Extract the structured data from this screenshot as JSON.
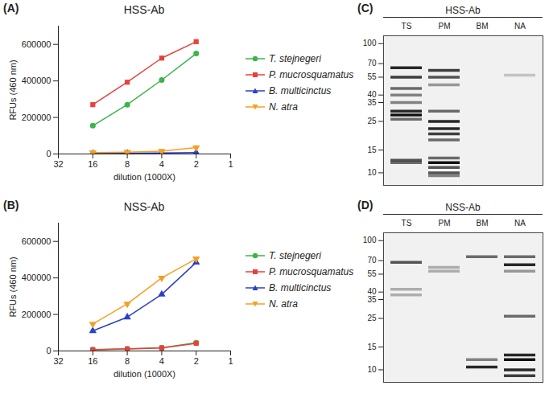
{
  "chart_data": [
    {
      "type": "line",
      "label": "(A)",
      "title": "HSS-Ab",
      "x_label": "dilution (1000X)",
      "y_label": "RFUs (460 nm)",
      "log": "x",
      "grid": false,
      "legend": "right",
      "x": [
        16,
        8,
        4,
        2
      ],
      "xlim": [
        32,
        1
      ],
      "xticks": [
        32,
        16,
        8,
        4,
        2,
        1
      ],
      "ylim": [
        0,
        700000
      ],
      "yticks": [
        0,
        200000,
        400000,
        600000
      ],
      "series": [
        {
          "name": "T. stejnegeri",
          "color": "#3cb44b",
          "marker": "circle",
          "values": [
            155000,
            270000,
            405000,
            550000
          ]
        },
        {
          "name": "P. mucrosquamatus",
          "color": "#e8413c",
          "marker": "square",
          "values": [
            270000,
            393000,
            525000,
            615000
          ]
        },
        {
          "name": "B. multicinctus",
          "color": "#2b3fc9",
          "marker": "triangle",
          "values": [
            3000,
            4000,
            5000,
            8000
          ]
        },
        {
          "name": "N. atra",
          "color": "#f5a020",
          "marker": "triangle-down",
          "values": [
            8000,
            10000,
            15000,
            35000
          ]
        }
      ]
    },
    {
      "type": "line",
      "label": "(B)",
      "title": "NSS-Ab",
      "x_label": "dilution (1000X)",
      "y_label": "RFUs (460 nm)",
      "log": "x",
      "grid": false,
      "legend": "right",
      "x": [
        16,
        8,
        4,
        2
      ],
      "xlim": [
        32,
        1
      ],
      "xticks": [
        32,
        16,
        8,
        4,
        2,
        1
      ],
      "ylim": [
        0,
        700000
      ],
      "yticks": [
        0,
        200000,
        400000,
        600000
      ],
      "series": [
        {
          "name": "T. stejnegeri",
          "color": "#3cb44b",
          "marker": "circle",
          "values": [
            8000,
            12000,
            18000,
            45000
          ]
        },
        {
          "name": "P. mucrosquamatus",
          "color": "#e8413c",
          "marker": "square",
          "values": [
            7000,
            11000,
            17000,
            42000
          ]
        },
        {
          "name": "B. multicinctus",
          "color": "#2b3fc9",
          "marker": "triangle",
          "values": [
            110000,
            185000,
            310000,
            485000
          ]
        },
        {
          "name": "N. atra",
          "color": "#f5a020",
          "marker": "triangle-down",
          "values": [
            148000,
            258000,
            400000,
            505000
          ]
        }
      ]
    },
    {
      "type": "blot",
      "label": "(C)",
      "title": "HSS-Ab",
      "log": "y",
      "categories": [
        "TS",
        "PM",
        "BM",
        "NA"
      ],
      "ylim": [
        8,
        115
      ],
      "yticks": [
        100,
        70,
        55,
        40,
        35,
        25,
        15,
        10
      ],
      "bands": [
        [
          {
            "kda": 65,
            "intensity": 0.9
          },
          {
            "kda": 55,
            "intensity": 0.8
          },
          {
            "kda": 45,
            "intensity": 0.6
          },
          {
            "kda": 40,
            "intensity": 0.5
          },
          {
            "kda": 35,
            "intensity": 0.5
          },
          {
            "kda": 30,
            "intensity": 0.9
          },
          {
            "kda": 28,
            "intensity": 1
          },
          {
            "kda": 26,
            "intensity": 0.6
          },
          {
            "kda": 12.5,
            "intensity": 0.7
          },
          {
            "kda": 12,
            "intensity": 0.6
          }
        ],
        [
          {
            "kda": 62,
            "intensity": 0.8
          },
          {
            "kda": 55,
            "intensity": 0.7
          },
          {
            "kda": 48,
            "intensity": 0.4
          },
          {
            "kda": 30,
            "intensity": 0.6
          },
          {
            "kda": 25,
            "intensity": 0.9
          },
          {
            "kda": 22,
            "intensity": 0.9
          },
          {
            "kda": 20,
            "intensity": 0.8
          },
          {
            "kda": 18,
            "intensity": 0.6
          },
          {
            "kda": 13,
            "intensity": 0.6
          },
          {
            "kda": 12,
            "intensity": 1
          },
          {
            "kda": 11,
            "intensity": 0.7
          },
          {
            "kda": 10,
            "intensity": 0.7
          },
          {
            "kda": 9.5,
            "intensity": 0.5
          }
        ],
        [],
        [
          {
            "kda": 57,
            "intensity": 0.2
          }
        ]
      ]
    },
    {
      "type": "blot",
      "label": "(D)",
      "title": "NSS-Ab",
      "log": "y",
      "categories": [
        "TS",
        "PM",
        "BM",
        "NA"
      ],
      "ylim": [
        8,
        115
      ],
      "yticks": [
        100,
        70,
        55,
        40,
        35,
        25,
        15,
        10
      ],
      "bands": [
        [
          {
            "kda": 68,
            "intensity": 0.7
          },
          {
            "kda": 42,
            "intensity": 0.3
          },
          {
            "kda": 38,
            "intensity": 0.3
          }
        ],
        [
          {
            "kda": 62,
            "intensity": 0.3
          },
          {
            "kda": 58,
            "intensity": 0.3
          }
        ],
        [
          {
            "kda": 75,
            "intensity": 0.6
          },
          {
            "kda": 12,
            "intensity": 0.5
          },
          {
            "kda": 10.5,
            "intensity": 0.9
          }
        ],
        [
          {
            "kda": 75,
            "intensity": 0.6
          },
          {
            "kda": 65,
            "intensity": 0.9
          },
          {
            "kda": 58,
            "intensity": 0.4
          },
          {
            "kda": 26,
            "intensity": 0.6
          },
          {
            "kda": 13,
            "intensity": 0.9
          },
          {
            "kda": 12,
            "intensity": 1
          },
          {
            "kda": 10,
            "intensity": 0.9
          },
          {
            "kda": 9,
            "intensity": 0.8
          }
        ]
      ]
    }
  ]
}
